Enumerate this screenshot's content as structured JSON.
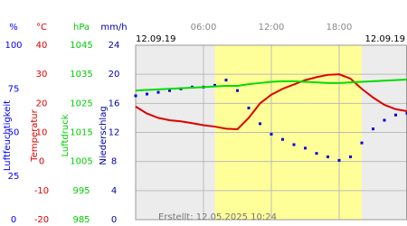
{
  "chart_data": {
    "type": "line",
    "date_left": "12.09.19",
    "date_right": "12.09.19",
    "footer": "Erstellt: 12.05.2025 10:24",
    "xlim": [
      0,
      24
    ],
    "xticks": [
      {
        "value": 6,
        "label": "06:00"
      },
      {
        "value": 12,
        "label": "12:00"
      },
      {
        "value": 18,
        "label": "18:00"
      }
    ],
    "daylight": [
      7,
      20
    ],
    "grid": true,
    "y_axes": [
      {
        "unit": "%",
        "name": "Luftfeuchtigkeit",
        "color": "#0000ff",
        "ylim": [
          0,
          100
        ],
        "yticks": [
          0,
          25,
          50,
          75,
          100
        ]
      },
      {
        "unit": "°C",
        "name": "Temperatur",
        "color": "#dd0000",
        "ylim": [
          -20,
          40
        ],
        "yticks": [
          -20,
          -10,
          0,
          10,
          20,
          30,
          40
        ]
      },
      {
        "unit": "hPa",
        "name": "Luftdruck",
        "color": "#00cc00",
        "ylim": [
          985,
          1045
        ],
        "yticks": [
          985,
          995,
          1005,
          1015,
          1025,
          1035,
          1045
        ]
      },
      {
        "unit": "mm/h",
        "name": "Niederschlag",
        "color": "#0000aa",
        "ylim": [
          0,
          24
        ],
        "yticks": [
          0,
          4,
          8,
          12,
          16,
          20,
          24
        ]
      }
    ],
    "x": [
      0,
      1,
      2,
      3,
      4,
      5,
      6,
      7,
      8,
      9,
      10,
      11,
      12,
      13,
      14,
      15,
      16,
      17,
      18,
      19,
      20,
      21,
      22,
      23,
      24
    ],
    "series": [
      {
        "axis": 0,
        "style": "markers",
        "color": "#0000dd",
        "values": [
          71,
          72,
          73,
          74,
          75,
          76,
          76,
          77,
          80,
          74,
          64,
          55,
          49,
          46,
          43,
          41,
          38,
          36,
          34,
          36,
          44,
          52,
          57,
          60,
          61
        ]
      },
      {
        "axis": 1,
        "style": "line",
        "color": "#dd0000",
        "values": [
          18.9,
          16.5,
          15,
          14.2,
          13.8,
          13.2,
          12.5,
          12,
          11.3,
          11.1,
          15,
          20,
          23,
          25,
          26.5,
          28,
          29,
          29.8,
          30,
          28.5,
          25,
          22,
          19.5,
          18,
          17.3
        ]
      },
      {
        "axis": 2,
        "style": "line",
        "color": "#00dd00",
        "values": [
          1029.4,
          1029.6,
          1029.8,
          1030,
          1030.2,
          1030.4,
          1030.6,
          1030.8,
          1031,
          1031,
          1031.6,
          1032,
          1032.4,
          1032.6,
          1032.6,
          1032.4,
          1032.2,
          1032,
          1032,
          1032.2,
          1032.4,
          1032.6,
          1032.8,
          1033,
          1033.2
        ]
      }
    ]
  }
}
